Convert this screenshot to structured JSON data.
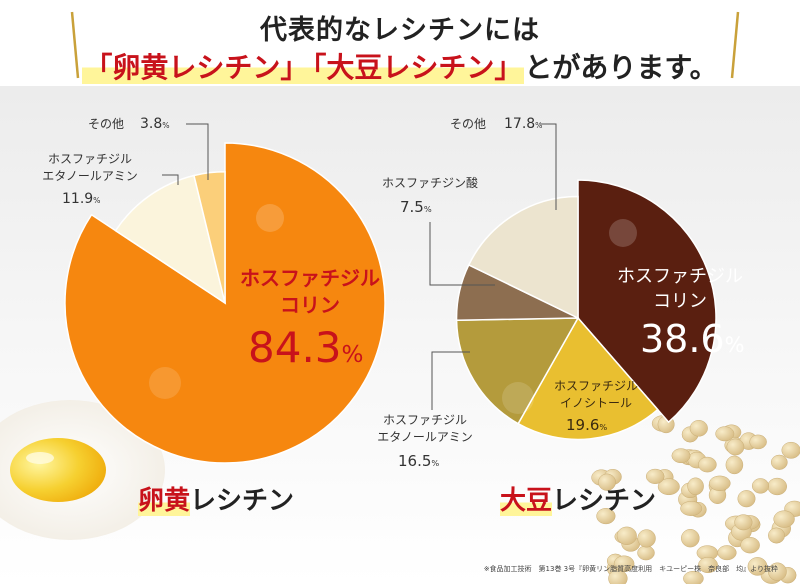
{
  "headline": {
    "line1": "代表的なレシチンには",
    "highlight1": "「卵黄レシチン」",
    "highlight2": "「大豆レシチン」",
    "suffix": "とがあります。"
  },
  "colors": {
    "accent_red": "#c8121b",
    "highlight_yellow": "#fff59a",
    "gold": "#c9a13a"
  },
  "chart_data": [
    {
      "type": "pie",
      "title_highlight": "卵黄",
      "title_rest": "レシチン",
      "unit": "%",
      "slices": [
        {
          "name_line1": "ホスファチジル",
          "name_line2": "コリン",
          "value": 84.3,
          "value_text": "84.3",
          "color": "#f6870f"
        },
        {
          "name_line1": "ホスファチジル",
          "name_line2": "エタノールアミン",
          "value": 11.9,
          "value_text": "11.9",
          "color": "#fbf4dc"
        },
        {
          "name_line1": "その他",
          "name_line2": "",
          "value": 3.8,
          "value_text": "3.8",
          "color": "#fbcf7a"
        }
      ]
    },
    {
      "type": "pie",
      "title_highlight": "大豆",
      "title_rest": "レシチン",
      "unit": "%",
      "slices": [
        {
          "name_line1": "ホスファチジル",
          "name_line2": "コリン",
          "value": 38.6,
          "value_text": "38.6",
          "color": "#5a1f10"
        },
        {
          "name_line1": "ホスファチジル",
          "name_line2": "イノシトール",
          "value": 19.6,
          "value_text": "19.6",
          "color": "#e9bf30"
        },
        {
          "name_line1": "ホスファチジル",
          "name_line2": "エタノールアミン",
          "value": 16.5,
          "value_text": "16.5",
          "color": "#b49b3c"
        },
        {
          "name_line1": "ホスファチジン酸",
          "name_line2": "",
          "value": 7.5,
          "value_text": "7.5",
          "color": "#8d6e50"
        },
        {
          "name_line1": "その他",
          "name_line2": "",
          "value": 17.8,
          "value_text": "17.8",
          "color": "#ece4cf"
        }
      ]
    }
  ],
  "footnote": "※食品加工技術　第13巻 3号『卵黄リン脂質高度利用　キユーピー株　奈良部　均』より抜粋"
}
